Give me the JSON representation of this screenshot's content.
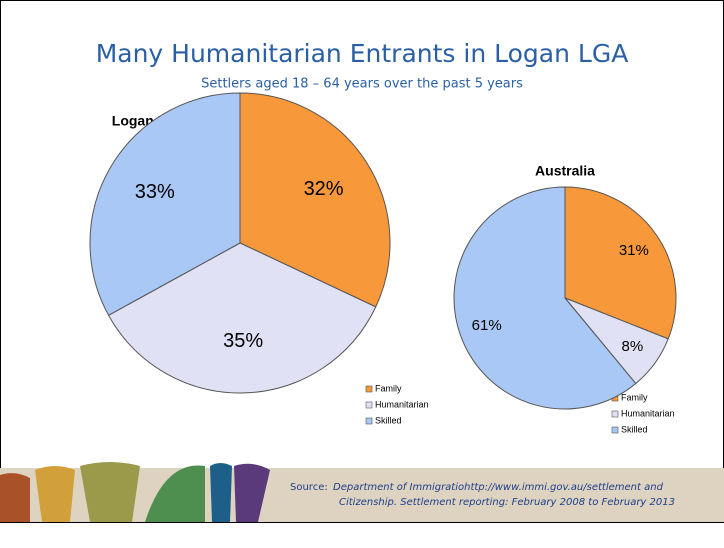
{
  "title": "Many Humanitarian Entrants in Logan LGA",
  "subtitle": "Settlers aged 18 – 64 years over the past 5 years",
  "chart_data": [
    {
      "type": "pie",
      "title": "Logan LGA (6120 total arrivals)",
      "categories": [
        "Family",
        "Humanitarian",
        "Skilled"
      ],
      "values": [
        32,
        35,
        33
      ],
      "value_labels": [
        "32%",
        "35%",
        "33%"
      ],
      "colors": [
        "#f7993a",
        "#e1e1f5",
        "#a9c8f5"
      ]
    },
    {
      "type": "pie",
      "title": "Australia",
      "categories": [
        "Family",
        "Humanitarian",
        "Skilled"
      ],
      "values": [
        31,
        8,
        61
      ],
      "value_labels": [
        "31%",
        "8%",
        "61%"
      ],
      "colors": [
        "#f7993a",
        "#e1e1f5",
        "#a9c8f5"
      ]
    }
  ],
  "source": {
    "label": "Source:",
    "lines": [
      "Department of Immigratiohttp://www.immi.gov.au/settlement and",
      "Citizenship. Settlement reporting: February 2008 to February 2013"
    ]
  }
}
